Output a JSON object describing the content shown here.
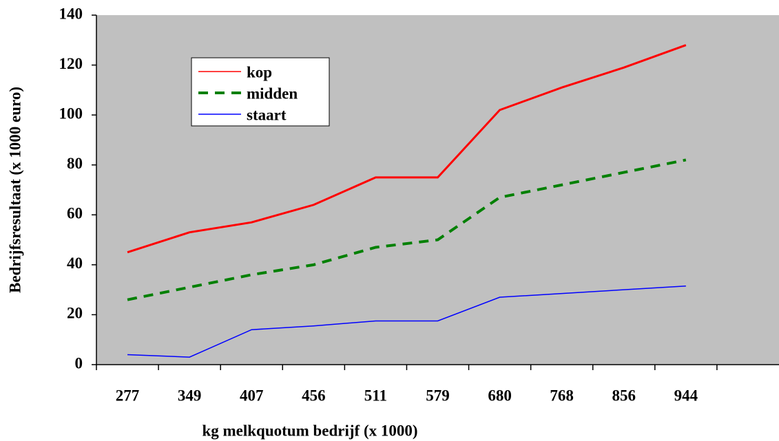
{
  "chart_data": {
    "type": "line",
    "x_label": "kg melkquotum bedrijf (x 1000)",
    "y_label": "Bedrijfsresultaat (x 1000 euro)",
    "categories": [
      "277",
      "349",
      "407",
      "456",
      "511",
      "579",
      "680",
      "768",
      "856",
      "944",
      null
    ],
    "series": [
      {
        "name": "kop",
        "color": "#ff0000",
        "values": [
          45,
          53,
          57,
          64,
          75,
          75,
          102,
          111,
          119,
          128,
          null
        ]
      },
      {
        "name": "midden",
        "color": "#008000",
        "dashed": true,
        "values": [
          26,
          31,
          36,
          40,
          47,
          50,
          67,
          72,
          77,
          82,
          null
        ]
      },
      {
        "name": "staart",
        "color": "#0000ff",
        "values": [
          4,
          3,
          14,
          15.5,
          17.5,
          17.5,
          27,
          28.5,
          30,
          31.5,
          null
        ]
      }
    ],
    "ylim": [
      0,
      140
    ],
    "yticks": [
      0,
      20,
      40,
      60,
      80,
      100,
      120,
      140
    ],
    "background": "#c0c0c0"
  }
}
